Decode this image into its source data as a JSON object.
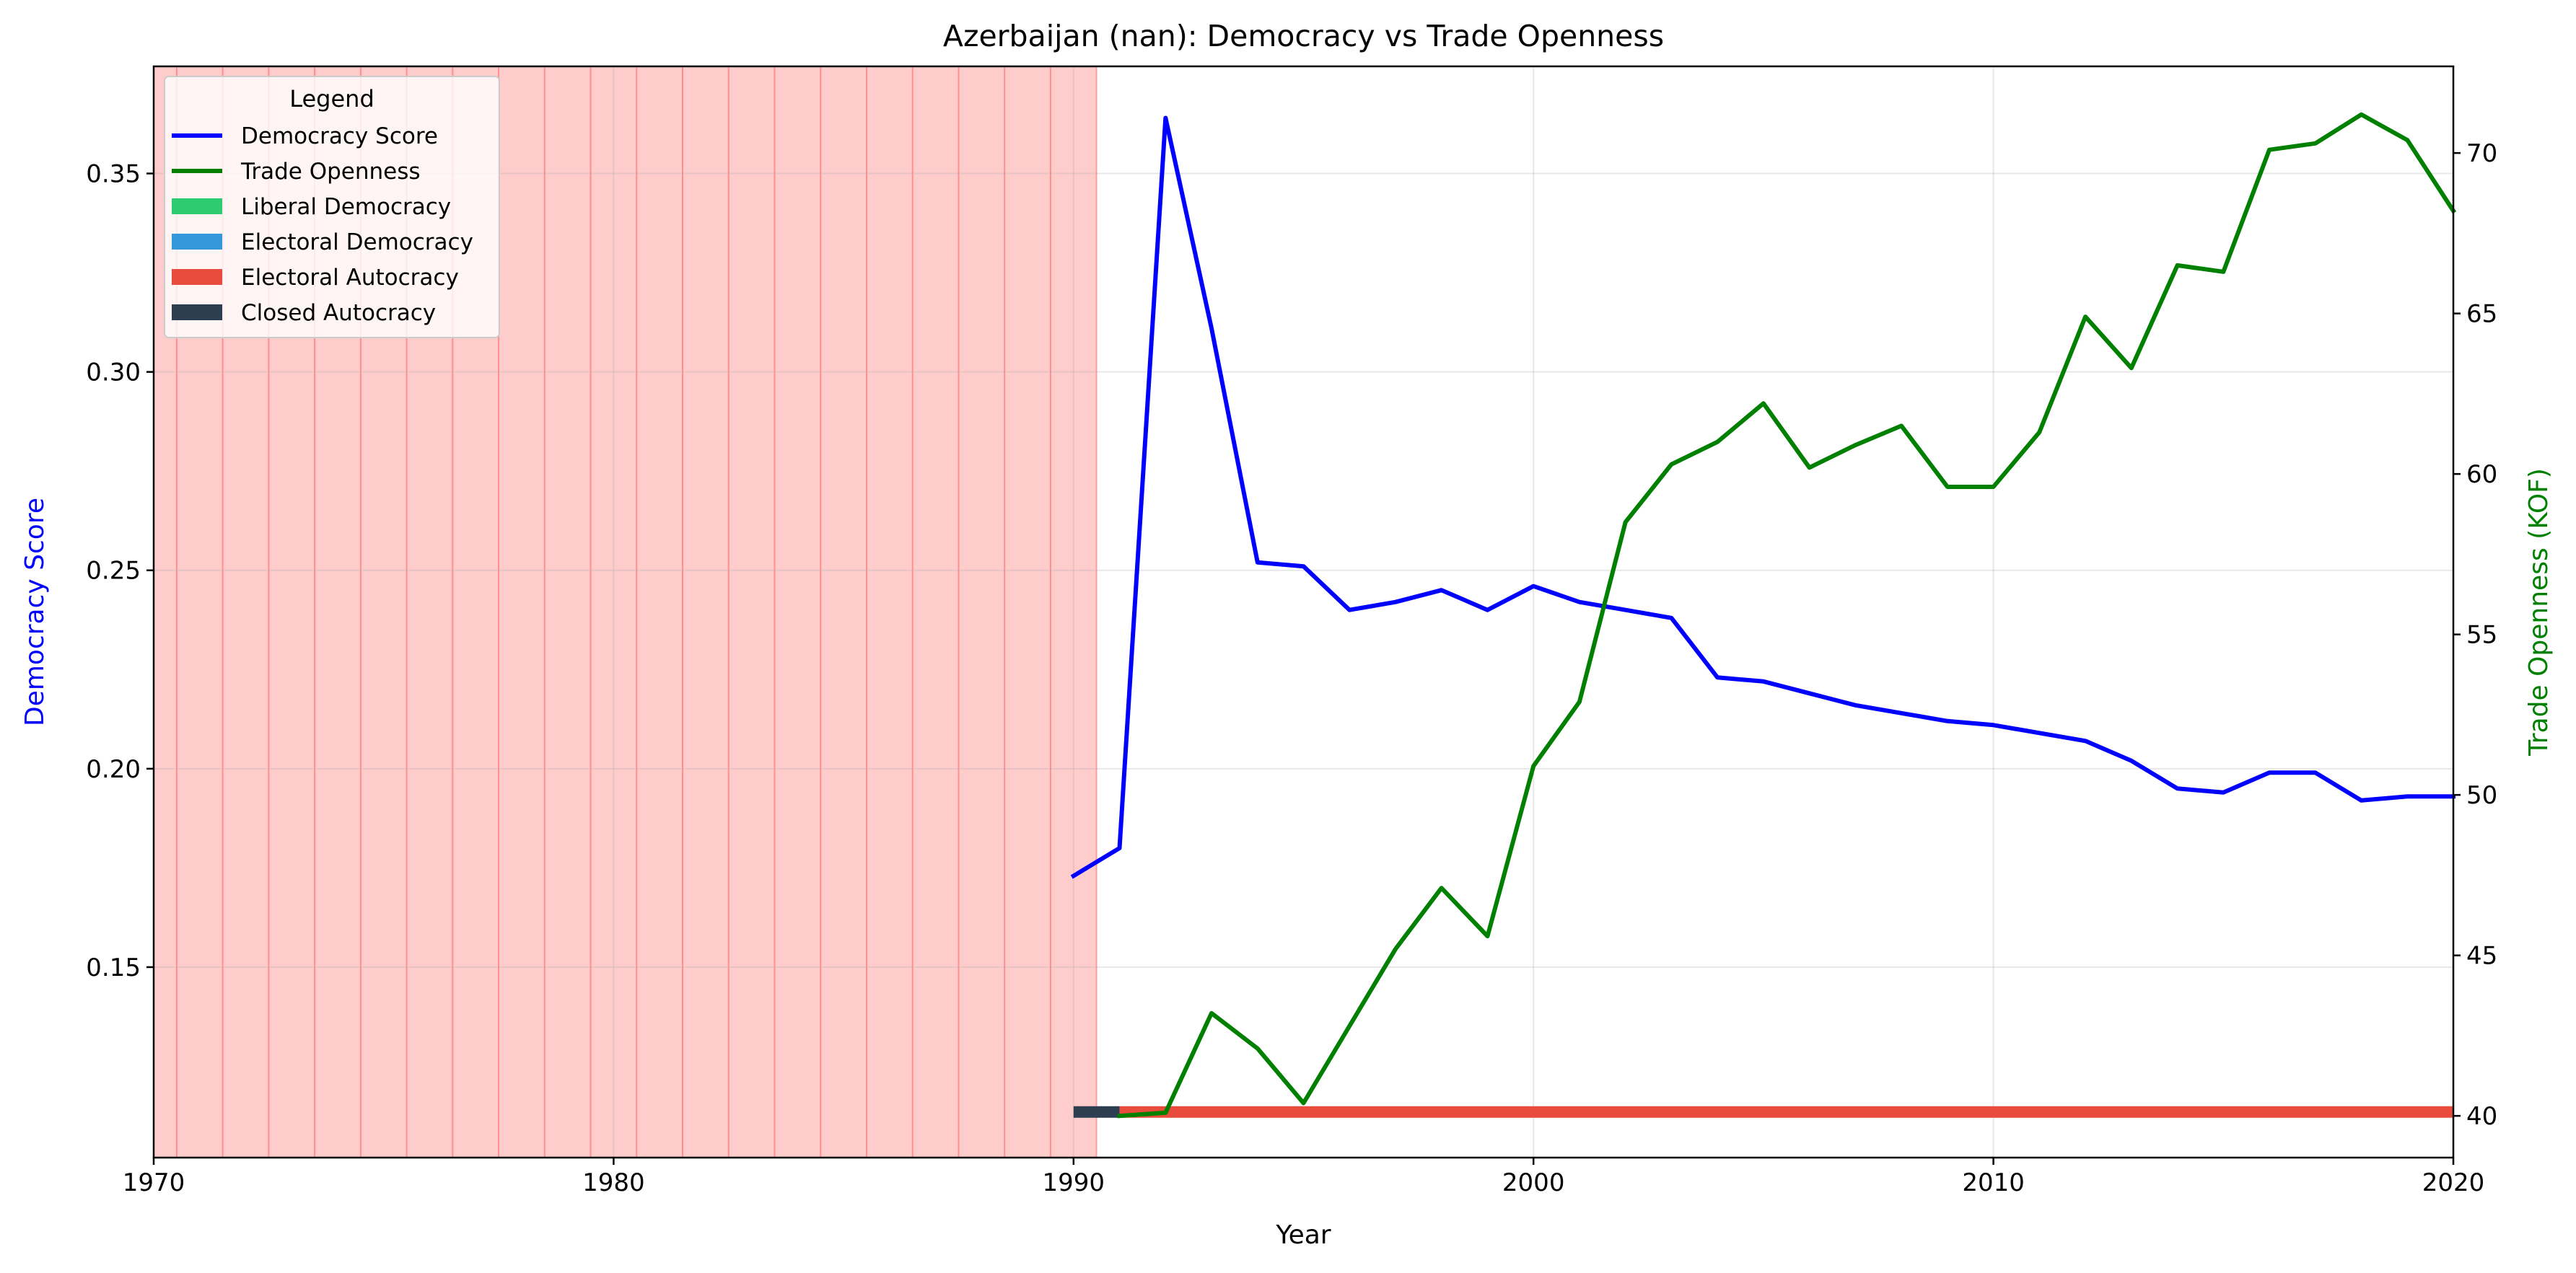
{
  "chart_data": {
    "type": "line",
    "title": "Azerbaijan (nan): Democracy vs Trade Openness",
    "xlabel": "Year",
    "ylabel_left": "Democracy Score",
    "ylabel_right": "Trade Openness (KOF)",
    "xlim": [
      1970,
      2020
    ],
    "ylim_left": [
      0.102,
      0.377
    ],
    "ylim_right": [
      38.7,
      72.7
    ],
    "x_ticks": [
      1970,
      1980,
      1990,
      2000,
      2010,
      2020
    ],
    "y_left_ticks": [
      0.15,
      0.2,
      0.25,
      0.3,
      0.35
    ],
    "y_left_tick_labels": [
      "0.15",
      "0.20",
      "0.25",
      "0.30",
      "0.35"
    ],
    "y_right_ticks": [
      40,
      45,
      50,
      55,
      60,
      65,
      70
    ],
    "y_right_tick_labels": [
      "40",
      "45",
      "50",
      "55",
      "60",
      "65",
      "70"
    ],
    "grid": true,
    "colors": {
      "democracy": "#0000ff",
      "trade": "#008000",
      "missing_shade": "#ff0000",
      "liberal_democracy": "#2ecc71",
      "electoral_democracy": "#3498db",
      "electoral_autocracy": "#e74c3c",
      "closed_autocracy": "#2c3e50"
    },
    "missing_data_years": [
      1970,
      1971,
      1972,
      1973,
      1974,
      1975,
      1976,
      1977,
      1978,
      1979,
      1980,
      1981,
      1982,
      1983,
      1984,
      1985,
      1986,
      1987,
      1988,
      1989,
      1990
    ],
    "series": [
      {
        "name": "Democracy Score",
        "axis": "left",
        "x": [
          1990,
          1991,
          1992,
          1993,
          1994,
          1995,
          1996,
          1997,
          1998,
          1999,
          2000,
          2001,
          2002,
          2003,
          2004,
          2005,
          2006,
          2007,
          2008,
          2009,
          2010,
          2011,
          2012,
          2013,
          2014,
          2015,
          2016,
          2017,
          2018,
          2019,
          2020
        ],
        "values": [
          0.173,
          0.18,
          0.364,
          0.311,
          0.252,
          0.251,
          0.24,
          0.242,
          0.245,
          0.24,
          0.246,
          0.242,
          0.24,
          0.238,
          0.223,
          0.222,
          0.219,
          0.216,
          0.214,
          0.212,
          0.211,
          0.209,
          0.207,
          0.202,
          0.195,
          0.194,
          0.199,
          0.199,
          0.192,
          0.193,
          0.193
        ]
      },
      {
        "name": "Trade Openness",
        "axis": "right",
        "x": [
          1991,
          1992,
          1993,
          1994,
          1995,
          1996,
          1997,
          1998,
          1999,
          2000,
          2001,
          2002,
          2003,
          2004,
          2005,
          2006,
          2007,
          2008,
          2009,
          2010,
          2011,
          2012,
          2013,
          2014,
          2015,
          2016,
          2017,
          2018,
          2019,
          2020
        ],
        "values": [
          40.0,
          40.1,
          43.2,
          42.1,
          40.4,
          42.8,
          45.2,
          47.1,
          45.6,
          50.9,
          52.9,
          58.5,
          60.3,
          61.0,
          62.2,
          60.2,
          60.9,
          61.5,
          59.6,
          59.6,
          61.3,
          64.9,
          63.3,
          66.5,
          66.3,
          70.1,
          70.3,
          71.2,
          70.4,
          68.2
        ]
      }
    ],
    "regime_segments": [
      {
        "regime": "Closed Autocracy",
        "start": 1990,
        "end": 1991
      },
      {
        "regime": "Electoral Autocracy",
        "start": 1991,
        "end": 2020
      }
    ],
    "regime_bar_value": 0.1135,
    "legend": {
      "title": "Legend",
      "placement": "top-left",
      "entries": [
        {
          "label": "Democracy Score",
          "kind": "line",
          "color": "#0000ff"
        },
        {
          "label": "Trade Openness",
          "kind": "line",
          "color": "#008000"
        },
        {
          "label": "Liberal Democracy",
          "kind": "patch",
          "color": "#2ecc71"
        },
        {
          "label": "Electoral Democracy",
          "kind": "patch",
          "color": "#3498db"
        },
        {
          "label": "Electoral Autocracy",
          "kind": "patch",
          "color": "#e74c3c"
        },
        {
          "label": "Closed Autocracy",
          "kind": "patch",
          "color": "#2c3e50"
        }
      ]
    }
  }
}
